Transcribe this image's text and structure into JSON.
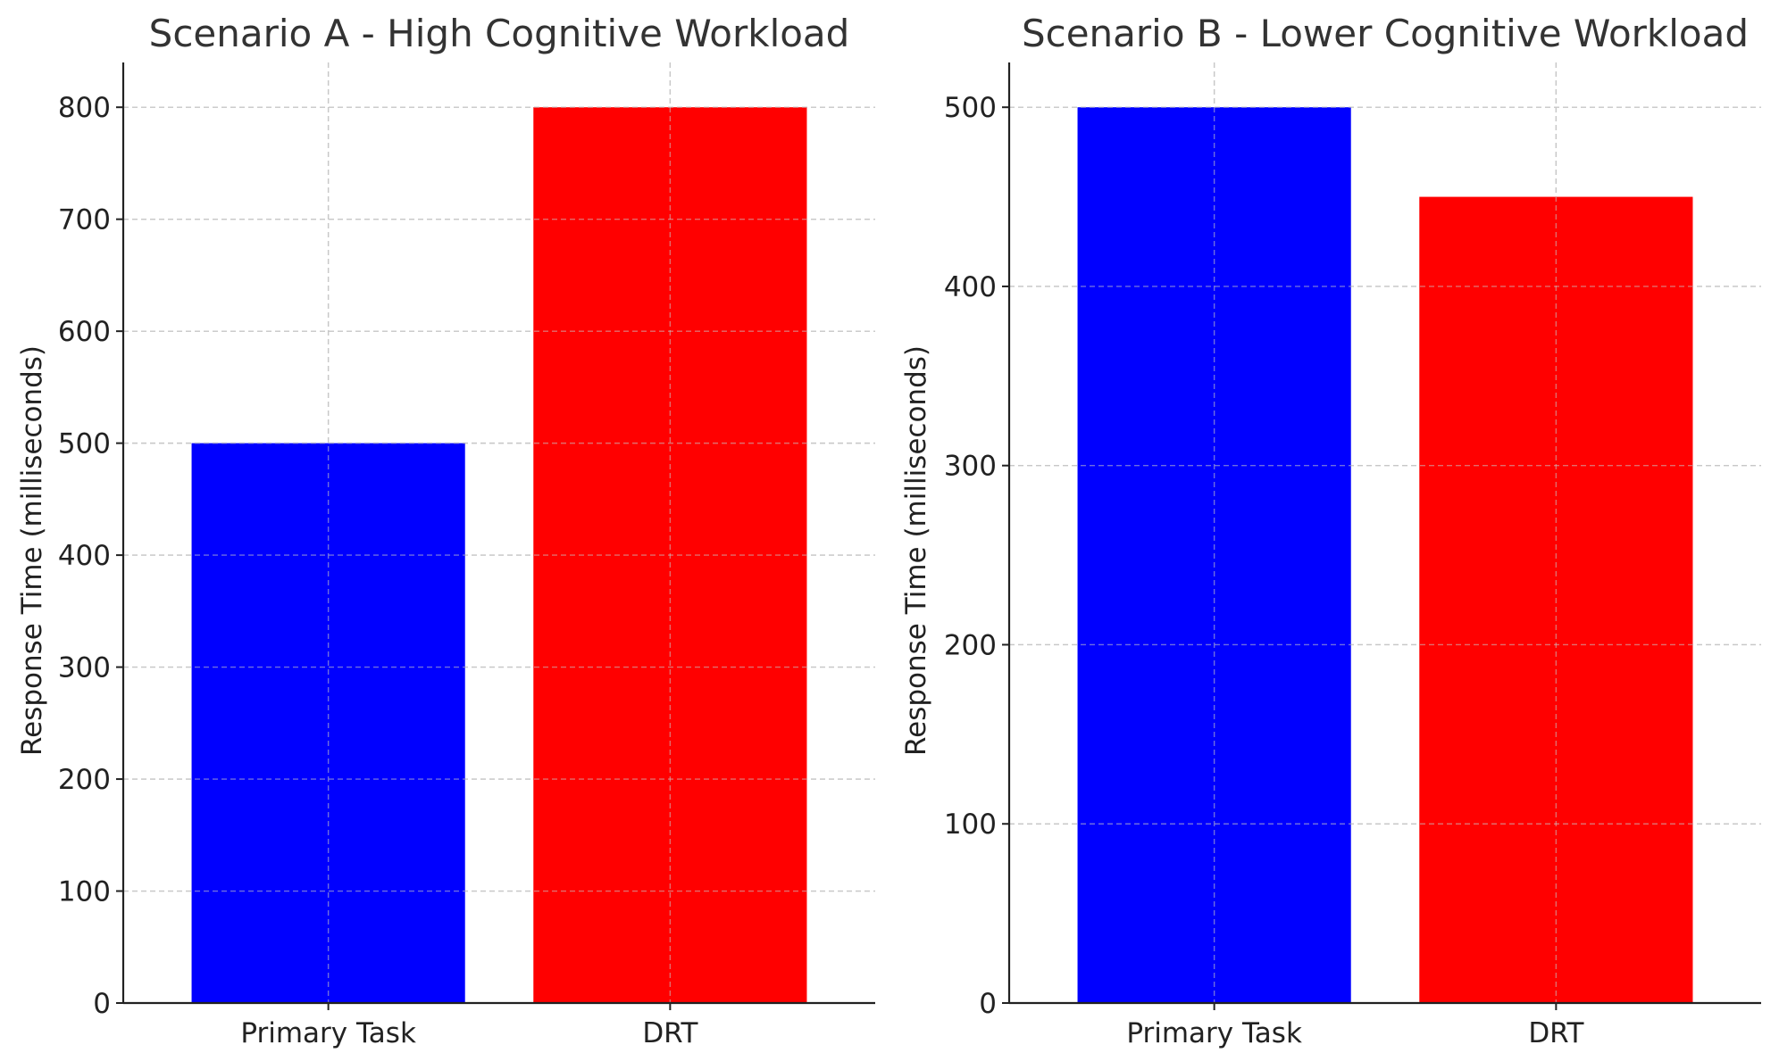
{
  "chart_data": [
    {
      "type": "bar",
      "title": "Scenario A - High Cognitive Workload",
      "xlabel": "",
      "ylabel": "Response Time (milliseconds)",
      "categories": [
        "Primary Task",
        "DRT"
      ],
      "values": [
        500,
        800
      ],
      "colors": [
        "#0000ff",
        "#ff0000"
      ],
      "ylim": [
        0,
        840
      ],
      "yticks": [
        0,
        100,
        200,
        300,
        400,
        500,
        600,
        700,
        800
      ],
      "grid": true
    },
    {
      "type": "bar",
      "title": "Scenario B - Lower Cognitive Workload",
      "xlabel": "",
      "ylabel": "Response Time (milliseconds)",
      "categories": [
        "Primary Task",
        "DRT"
      ],
      "values": [
        500,
        450
      ],
      "colors": [
        "#0000ff",
        "#ff0000"
      ],
      "ylim": [
        0,
        525
      ],
      "yticks": [
        0,
        100,
        200,
        300,
        400,
        500
      ],
      "grid": true
    }
  ]
}
